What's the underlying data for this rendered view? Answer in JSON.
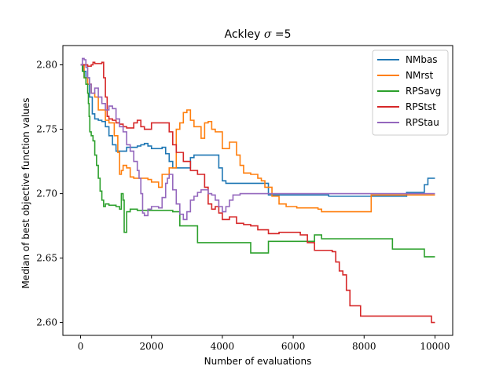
{
  "chart_data": {
    "type": "line",
    "title_prefix": "Ackley ",
    "title_symbol": "σ",
    "title_suffix": " =5",
    "xlabel": "Number of evaluations",
    "ylabel": "Median of best objective function values",
    "xlim": [
      -500,
      10500
    ],
    "ylim": [
      2.59,
      2.815
    ],
    "xticks": [
      0,
      2000,
      4000,
      6000,
      8000,
      10000
    ],
    "yticks": [
      2.6,
      2.65,
      2.7,
      2.75,
      2.8
    ],
    "xtick_labels": [
      "0",
      "2000",
      "4000",
      "6000",
      "8000",
      "10000"
    ],
    "ytick_labels": [
      "2.60",
      "2.65",
      "2.70",
      "2.75",
      "2.80"
    ],
    "legend_position": "top-right",
    "grid": false,
    "series": [
      {
        "name": "NMbas",
        "color": "#1f77b4",
        "points": [
          [
            0,
            2.8
          ],
          [
            80,
            2.795
          ],
          [
            150,
            2.79
          ],
          [
            250,
            2.775
          ],
          [
            330,
            2.762
          ],
          [
            400,
            2.758
          ],
          [
            500,
            2.757
          ],
          [
            600,
            2.756
          ],
          [
            700,
            2.752
          ],
          [
            800,
            2.745
          ],
          [
            900,
            2.738
          ],
          [
            1000,
            2.733
          ],
          [
            1200,
            2.733
          ],
          [
            1300,
            2.736
          ],
          [
            1500,
            2.736
          ],
          [
            1600,
            2.737
          ],
          [
            1700,
            2.738
          ],
          [
            1800,
            2.739
          ],
          [
            1900,
            2.737
          ],
          [
            2000,
            2.735
          ],
          [
            2300,
            2.736
          ],
          [
            2400,
            2.731
          ],
          [
            2500,
            2.725
          ],
          [
            2600,
            2.72
          ],
          [
            3000,
            2.72
          ],
          [
            3100,
            2.728
          ],
          [
            3200,
            2.73
          ],
          [
            3800,
            2.73
          ],
          [
            3900,
            2.72
          ],
          [
            4000,
            2.71
          ],
          [
            4100,
            2.708
          ],
          [
            5200,
            2.708
          ],
          [
            5300,
            2.699
          ],
          [
            6000,
            2.699
          ],
          [
            7000,
            2.698
          ],
          [
            9100,
            2.698
          ],
          [
            9200,
            2.701
          ],
          [
            9600,
            2.701
          ],
          [
            9700,
            2.707
          ],
          [
            9800,
            2.712
          ],
          [
            10000,
            2.712
          ]
        ]
      },
      {
        "name": "NMrst",
        "color": "#ff7f0e",
        "points": [
          [
            0,
            2.8
          ],
          [
            100,
            2.79
          ],
          [
            200,
            2.785
          ],
          [
            300,
            2.778
          ],
          [
            400,
            2.775
          ],
          [
            500,
            2.765
          ],
          [
            700,
            2.757
          ],
          [
            800,
            2.755
          ],
          [
            950,
            2.745
          ],
          [
            1050,
            2.732
          ],
          [
            1100,
            2.715
          ],
          [
            1150,
            2.718
          ],
          [
            1200,
            2.722
          ],
          [
            1300,
            2.72
          ],
          [
            1400,
            2.713
          ],
          [
            1500,
            2.712
          ],
          [
            1900,
            2.711
          ],
          [
            2000,
            2.709
          ],
          [
            2200,
            2.705
          ],
          [
            2300,
            2.715
          ],
          [
            2500,
            2.72
          ],
          [
            2700,
            2.75
          ],
          [
            2800,
            2.755
          ],
          [
            2900,
            2.763
          ],
          [
            3000,
            2.765
          ],
          [
            3100,
            2.757
          ],
          [
            3200,
            2.752
          ],
          [
            3400,
            2.743
          ],
          [
            3500,
            2.755
          ],
          [
            3600,
            2.756
          ],
          [
            3700,
            2.75
          ],
          [
            3800,
            2.748
          ],
          [
            4000,
            2.735
          ],
          [
            4200,
            2.74
          ],
          [
            4400,
            2.73
          ],
          [
            4500,
            2.722
          ],
          [
            4600,
            2.716
          ],
          [
            4800,
            2.715
          ],
          [
            5000,
            2.712
          ],
          [
            5100,
            2.71
          ],
          [
            5200,
            2.705
          ],
          [
            5400,
            2.698
          ],
          [
            5600,
            2.692
          ],
          [
            5800,
            2.69
          ],
          [
            6100,
            2.689
          ],
          [
            6700,
            2.688
          ],
          [
            6800,
            2.686
          ],
          [
            8000,
            2.686
          ],
          [
            8200,
            2.699
          ],
          [
            10000,
            2.699
          ]
        ]
      },
      {
        "name": "RPSavg",
        "color": "#2ca02c",
        "points": [
          [
            0,
            2.8
          ],
          [
            50,
            2.795
          ],
          [
            100,
            2.79
          ],
          [
            150,
            2.785
          ],
          [
            200,
            2.778
          ],
          [
            220,
            2.77
          ],
          [
            240,
            2.76
          ],
          [
            260,
            2.748
          ],
          [
            300,
            2.745
          ],
          [
            350,
            2.741
          ],
          [
            400,
            2.73
          ],
          [
            450,
            2.722
          ],
          [
            500,
            2.712
          ],
          [
            550,
            2.702
          ],
          [
            600,
            2.695
          ],
          [
            650,
            2.69
          ],
          [
            700,
            2.692
          ],
          [
            800,
            2.691
          ],
          [
            1000,
            2.69
          ],
          [
            1100,
            2.688
          ],
          [
            1150,
            2.7
          ],
          [
            1200,
            2.695
          ],
          [
            1230,
            2.67
          ],
          [
            1300,
            2.686
          ],
          [
            1400,
            2.688
          ],
          [
            1600,
            2.687
          ],
          [
            2000,
            2.687
          ],
          [
            2600,
            2.686
          ],
          [
            2800,
            2.675
          ],
          [
            3200,
            2.675
          ],
          [
            3300,
            2.662
          ],
          [
            4700,
            2.662
          ],
          [
            4800,
            2.654
          ],
          [
            5200,
            2.654
          ],
          [
            5300,
            2.663
          ],
          [
            6400,
            2.663
          ],
          [
            6600,
            2.668
          ],
          [
            6800,
            2.665
          ],
          [
            8700,
            2.665
          ],
          [
            8800,
            2.657
          ],
          [
            9600,
            2.657
          ],
          [
            9700,
            2.651
          ],
          [
            10000,
            2.651
          ]
        ]
      },
      {
        "name": "RPStst",
        "color": "#d62728",
        "points": [
          [
            0,
            2.8
          ],
          [
            100,
            2.8
          ],
          [
            200,
            2.799
          ],
          [
            300,
            2.8
          ],
          [
            350,
            2.802
          ],
          [
            400,
            2.801
          ],
          [
            500,
            2.801
          ],
          [
            600,
            2.802
          ],
          [
            650,
            2.79
          ],
          [
            700,
            2.775
          ],
          [
            750,
            2.76
          ],
          [
            800,
            2.758
          ],
          [
            900,
            2.757
          ],
          [
            1000,
            2.755
          ],
          [
            1100,
            2.754
          ],
          [
            1200,
            2.752
          ],
          [
            1300,
            2.751
          ],
          [
            1500,
            2.755
          ],
          [
            1600,
            2.757
          ],
          [
            1700,
            2.752
          ],
          [
            1800,
            2.75
          ],
          [
            2000,
            2.755
          ],
          [
            2400,
            2.755
          ],
          [
            2500,
            2.748
          ],
          [
            2600,
            2.738
          ],
          [
            2700,
            2.732
          ],
          [
            2900,
            2.725
          ],
          [
            3100,
            2.718
          ],
          [
            3300,
            2.715
          ],
          [
            3500,
            2.705
          ],
          [
            3600,
            2.692
          ],
          [
            3700,
            2.688
          ],
          [
            3800,
            2.69
          ],
          [
            3900,
            2.685
          ],
          [
            4000,
            2.68
          ],
          [
            4200,
            2.682
          ],
          [
            4400,
            2.677
          ],
          [
            4600,
            2.676
          ],
          [
            4800,
            2.675
          ],
          [
            5000,
            2.672
          ],
          [
            5300,
            2.669
          ],
          [
            5600,
            2.67
          ],
          [
            6200,
            2.668
          ],
          [
            6400,
            2.662
          ],
          [
            6600,
            2.656
          ],
          [
            7100,
            2.655
          ],
          [
            7200,
            2.647
          ],
          [
            7300,
            2.64
          ],
          [
            7400,
            2.637
          ],
          [
            7500,
            2.625
          ],
          [
            7600,
            2.613
          ],
          [
            7800,
            2.613
          ],
          [
            7900,
            2.605
          ],
          [
            9800,
            2.605
          ],
          [
            9900,
            2.6
          ],
          [
            10000,
            2.6
          ]
        ]
      },
      {
        "name": "RPStau",
        "color": "#9467bd",
        "points": [
          [
            0,
            2.8
          ],
          [
            50,
            2.805
          ],
          [
            100,
            2.804
          ],
          [
            150,
            2.798
          ],
          [
            200,
            2.79
          ],
          [
            250,
            2.785
          ],
          [
            300,
            2.778
          ],
          [
            400,
            2.782
          ],
          [
            500,
            2.775
          ],
          [
            600,
            2.77
          ],
          [
            700,
            2.765
          ],
          [
            800,
            2.768
          ],
          [
            900,
            2.766
          ],
          [
            1000,
            2.758
          ],
          [
            1100,
            2.752
          ],
          [
            1200,
            2.748
          ],
          [
            1300,
            2.738
          ],
          [
            1400,
            2.733
          ],
          [
            1500,
            2.725
          ],
          [
            1600,
            2.718
          ],
          [
            1650,
            2.712
          ],
          [
            1700,
            2.7
          ],
          [
            1750,
            2.685
          ],
          [
            1800,
            2.683
          ],
          [
            1900,
            2.688
          ],
          [
            2000,
            2.69
          ],
          [
            2200,
            2.689
          ],
          [
            2300,
            2.697
          ],
          [
            2400,
            2.708
          ],
          [
            2450,
            2.712
          ],
          [
            2500,
            2.715
          ],
          [
            2600,
            2.703
          ],
          [
            2700,
            2.692
          ],
          [
            2800,
            2.684
          ],
          [
            2900,
            2.68
          ],
          [
            3000,
            2.686
          ],
          [
            3100,
            2.695
          ],
          [
            3200,
            2.698
          ],
          [
            3300,
            2.701
          ],
          [
            3400,
            2.703
          ],
          [
            3600,
            2.7
          ],
          [
            3700,
            2.699
          ],
          [
            3800,
            2.695
          ],
          [
            3900,
            2.69
          ],
          [
            4000,
            2.686
          ],
          [
            4100,
            2.69
          ],
          [
            4200,
            2.695
          ],
          [
            4300,
            2.699
          ],
          [
            4500,
            2.7
          ],
          [
            5000,
            2.7
          ],
          [
            6000,
            2.7
          ],
          [
            8000,
            2.7
          ],
          [
            10000,
            2.7
          ]
        ]
      }
    ]
  }
}
